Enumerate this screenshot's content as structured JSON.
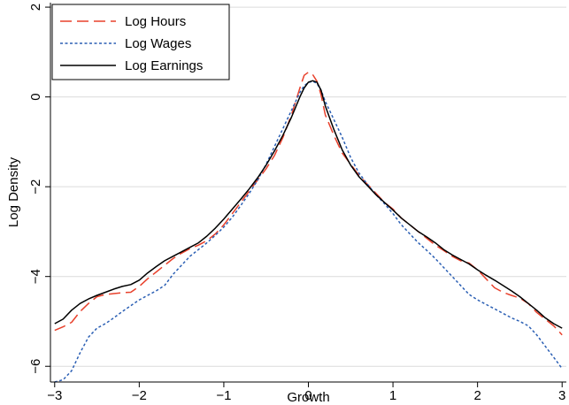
{
  "chart_data": {
    "type": "line",
    "xlabel": "Growth",
    "ylabel": "Log Density",
    "xlim": [
      -3.05,
      3.05
    ],
    "ylim": [
      -6.35,
      2.1
    ],
    "xticks": [
      -3,
      -2,
      -1,
      0,
      1,
      2,
      3
    ],
    "yticks": [
      -6,
      -4,
      -2,
      0,
      2
    ],
    "xtick_labels": [
      "−3",
      "−2",
      "−1",
      "0",
      "1",
      "2",
      "3"
    ],
    "ytick_labels": [
      "−6",
      "−4",
      "−2",
      "0",
      "2"
    ],
    "grid": "horizontal",
    "legend": "top-left",
    "series": [
      {
        "name": "Log Hours",
        "color": "#e8412c",
        "dash": "long-dash",
        "x": [
          -3.0,
          -2.9,
          -2.8,
          -2.7,
          -2.6,
          -2.5,
          -2.4,
          -2.3,
          -2.2,
          -2.1,
          -2.0,
          -1.9,
          -1.8,
          -1.7,
          -1.6,
          -1.5,
          -1.4,
          -1.3,
          -1.2,
          -1.1,
          -1.0,
          -0.9,
          -0.8,
          -0.7,
          -0.6,
          -0.5,
          -0.4,
          -0.3,
          -0.2,
          -0.1,
          -0.05,
          0.0,
          0.05,
          0.1,
          0.15,
          0.2,
          0.3,
          0.4,
          0.5,
          0.6,
          0.7,
          0.8,
          0.9,
          1.0,
          1.1,
          1.2,
          1.3,
          1.4,
          1.5,
          1.6,
          1.7,
          1.8,
          1.9,
          2.0,
          2.1,
          2.2,
          2.3,
          2.4,
          2.5,
          2.6,
          2.7,
          2.8,
          2.9,
          3.0
        ],
        "values": [
          -5.2,
          -5.12,
          -5.02,
          -4.78,
          -4.6,
          -4.45,
          -4.4,
          -4.38,
          -4.36,
          -4.35,
          -4.22,
          -4.05,
          -3.9,
          -3.75,
          -3.6,
          -3.48,
          -3.38,
          -3.3,
          -3.2,
          -3.05,
          -2.85,
          -2.6,
          -2.35,
          -2.1,
          -1.85,
          -1.6,
          -1.3,
          -0.9,
          -0.4,
          0.2,
          0.48,
          0.55,
          0.5,
          0.35,
          0.05,
          -0.4,
          -0.85,
          -1.25,
          -1.5,
          -1.75,
          -1.95,
          -2.15,
          -2.35,
          -2.5,
          -2.7,
          -2.85,
          -3.0,
          -3.15,
          -3.3,
          -3.42,
          -3.55,
          -3.65,
          -3.7,
          -3.85,
          -4.05,
          -4.25,
          -4.35,
          -4.42,
          -4.48,
          -4.6,
          -4.8,
          -4.95,
          -5.1,
          -5.3
        ]
      },
      {
        "name": "Log Wages",
        "color": "#2b5fb4",
        "dash": "dotted",
        "x": [
          -3.0,
          -2.9,
          -2.8,
          -2.7,
          -2.6,
          -2.5,
          -2.4,
          -2.3,
          -2.2,
          -2.1,
          -2.0,
          -1.9,
          -1.8,
          -1.7,
          -1.6,
          -1.5,
          -1.4,
          -1.3,
          -1.2,
          -1.1,
          -1.0,
          -0.9,
          -0.8,
          -0.7,
          -0.6,
          -0.5,
          -0.4,
          -0.3,
          -0.2,
          -0.1,
          -0.05,
          0.0,
          0.05,
          0.1,
          0.15,
          0.2,
          0.3,
          0.4,
          0.5,
          0.6,
          0.7,
          0.8,
          0.9,
          1.0,
          1.1,
          1.2,
          1.3,
          1.4,
          1.5,
          1.6,
          1.7,
          1.8,
          1.9,
          2.0,
          2.1,
          2.2,
          2.3,
          2.4,
          2.5,
          2.6,
          2.7,
          2.8,
          2.9,
          3.0
        ],
        "values": [
          -6.35,
          -6.3,
          -6.1,
          -5.7,
          -5.35,
          -5.15,
          -5.05,
          -4.92,
          -4.78,
          -4.65,
          -4.52,
          -4.42,
          -4.32,
          -4.2,
          -3.95,
          -3.75,
          -3.55,
          -3.4,
          -3.25,
          -3.08,
          -2.9,
          -2.68,
          -2.42,
          -2.15,
          -1.85,
          -1.5,
          -1.1,
          -0.7,
          -0.3,
          0.1,
          0.25,
          0.32,
          0.35,
          0.3,
          0.15,
          -0.1,
          -0.5,
          -0.9,
          -1.35,
          -1.7,
          -1.95,
          -2.18,
          -2.38,
          -2.6,
          -2.85,
          -3.05,
          -3.25,
          -3.42,
          -3.6,
          -3.8,
          -4.0,
          -4.2,
          -4.4,
          -4.52,
          -4.62,
          -4.72,
          -4.82,
          -4.92,
          -5.0,
          -5.1,
          -5.3,
          -5.55,
          -5.8,
          -6.05
        ]
      },
      {
        "name": "Log Earnings",
        "color": "#000000",
        "dash": "solid",
        "x": [
          -3.0,
          -2.9,
          -2.8,
          -2.7,
          -2.6,
          -2.5,
          -2.4,
          -2.3,
          -2.2,
          -2.1,
          -2.0,
          -1.9,
          -1.8,
          -1.7,
          -1.6,
          -1.5,
          -1.4,
          -1.3,
          -1.2,
          -1.1,
          -1.0,
          -0.9,
          -0.8,
          -0.7,
          -0.6,
          -0.5,
          -0.4,
          -0.3,
          -0.2,
          -0.1,
          -0.05,
          0.0,
          0.05,
          0.1,
          0.15,
          0.2,
          0.3,
          0.4,
          0.5,
          0.6,
          0.7,
          0.8,
          0.9,
          1.0,
          1.1,
          1.2,
          1.3,
          1.4,
          1.5,
          1.6,
          1.7,
          1.8,
          1.9,
          2.0,
          2.1,
          2.2,
          2.3,
          2.4,
          2.5,
          2.6,
          2.7,
          2.8,
          2.9,
          3.0
        ],
        "values": [
          -5.05,
          -4.95,
          -4.75,
          -4.6,
          -4.5,
          -4.42,
          -4.35,
          -4.28,
          -4.22,
          -4.18,
          -4.08,
          -3.92,
          -3.78,
          -3.65,
          -3.55,
          -3.45,
          -3.35,
          -3.25,
          -3.1,
          -2.92,
          -2.72,
          -2.5,
          -2.28,
          -2.05,
          -1.8,
          -1.52,
          -1.2,
          -0.85,
          -0.45,
          0.0,
          0.2,
          0.33,
          0.36,
          0.33,
          0.15,
          -0.2,
          -0.72,
          -1.18,
          -1.52,
          -1.78,
          -1.98,
          -2.18,
          -2.35,
          -2.52,
          -2.7,
          -2.85,
          -3.0,
          -3.12,
          -3.25,
          -3.4,
          -3.52,
          -3.62,
          -3.72,
          -3.85,
          -3.97,
          -4.08,
          -4.2,
          -4.32,
          -4.45,
          -4.6,
          -4.75,
          -4.92,
          -5.05,
          -5.15
        ]
      }
    ]
  }
}
